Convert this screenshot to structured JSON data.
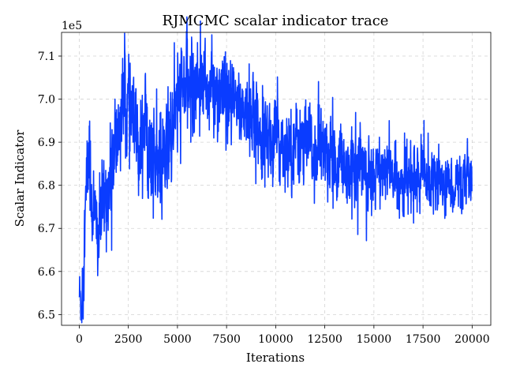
{
  "chart_data": {
    "type": "line",
    "title": "RJMCMC scalar indicator trace",
    "xlabel": "Iterations",
    "ylabel": "Scalar Indicator",
    "y_offset_label": "1e5",
    "xlim": [
      -900,
      20950
    ],
    "ylim": [
      647500,
      715500
    ],
    "grid": true,
    "x_ticks": [
      0,
      2500,
      5000,
      7500,
      10000,
      12500,
      15000,
      17500,
      20000
    ],
    "x_tick_labels": [
      "0",
      "2500",
      "5000",
      "7500",
      "10000",
      "12500",
      "15000",
      "17500",
      "20000"
    ],
    "y_ticks": [
      650000,
      660000,
      670000,
      680000,
      690000,
      700000,
      710000
    ],
    "y_tick_labels": [
      "6.5",
      "6.6",
      "6.7",
      "6.8",
      "6.9",
      "7.0",
      "7.1"
    ],
    "series": [
      {
        "color": "#0a3cff",
        "n": 2000,
        "x_start": 0,
        "x_step": 10,
        "trend": [
          [
            0,
            655000
          ],
          [
            100,
            652000
          ],
          [
            200,
            662000
          ],
          [
            300,
            672000
          ],
          [
            400,
            682000
          ],
          [
            500,
            688000
          ],
          [
            600,
            678000
          ],
          [
            800,
            672000
          ],
          [
            1000,
            668000
          ],
          [
            1200,
            675000
          ],
          [
            1500,
            680000
          ],
          [
            1800,
            688000
          ],
          [
            2000,
            692000
          ],
          [
            2200,
            700000
          ],
          [
            2500,
            698000
          ],
          [
            2800,
            693000
          ],
          [
            3000,
            688000
          ],
          [
            3300,
            696000
          ],
          [
            3600,
            688000
          ],
          [
            4000,
            683000
          ],
          [
            4400,
            686000
          ],
          [
            4800,
            695000
          ],
          [
            5200,
            702000
          ],
          [
            5600,
            703000
          ],
          [
            6000,
            705000
          ],
          [
            6500,
            703000
          ],
          [
            7000,
            701000
          ],
          [
            7500,
            698000
          ],
          [
            8000,
            699000
          ],
          [
            8500,
            697000
          ],
          [
            9000,
            695000
          ],
          [
            9500,
            692000
          ],
          [
            10000,
            690000
          ],
          [
            10500,
            690000
          ],
          [
            11000,
            690000
          ],
          [
            11500,
            689000
          ],
          [
            12000,
            688000
          ],
          [
            12500,
            688000
          ],
          [
            13000,
            686000
          ],
          [
            13500,
            684000
          ],
          [
            14000,
            685000
          ],
          [
            14500,
            684000
          ],
          [
            15000,
            683000
          ],
          [
            15500,
            684000
          ],
          [
            16000,
            682000
          ],
          [
            16500,
            681000
          ],
          [
            17000,
            681000
          ],
          [
            17500,
            682000
          ],
          [
            18000,
            682000
          ],
          [
            18500,
            681000
          ],
          [
            19000,
            680000
          ],
          [
            19500,
            681000
          ],
          [
            20000,
            680000
          ]
        ],
        "amplitude": [
          [
            0,
            4000
          ],
          [
            500,
            7000
          ],
          [
            1500,
            6000
          ],
          [
            2500,
            7000
          ],
          [
            5000,
            6500
          ],
          [
            8000,
            5500
          ],
          [
            12000,
            5500
          ],
          [
            16000,
            4500
          ],
          [
            20000,
            3500
          ]
        ]
      }
    ]
  }
}
